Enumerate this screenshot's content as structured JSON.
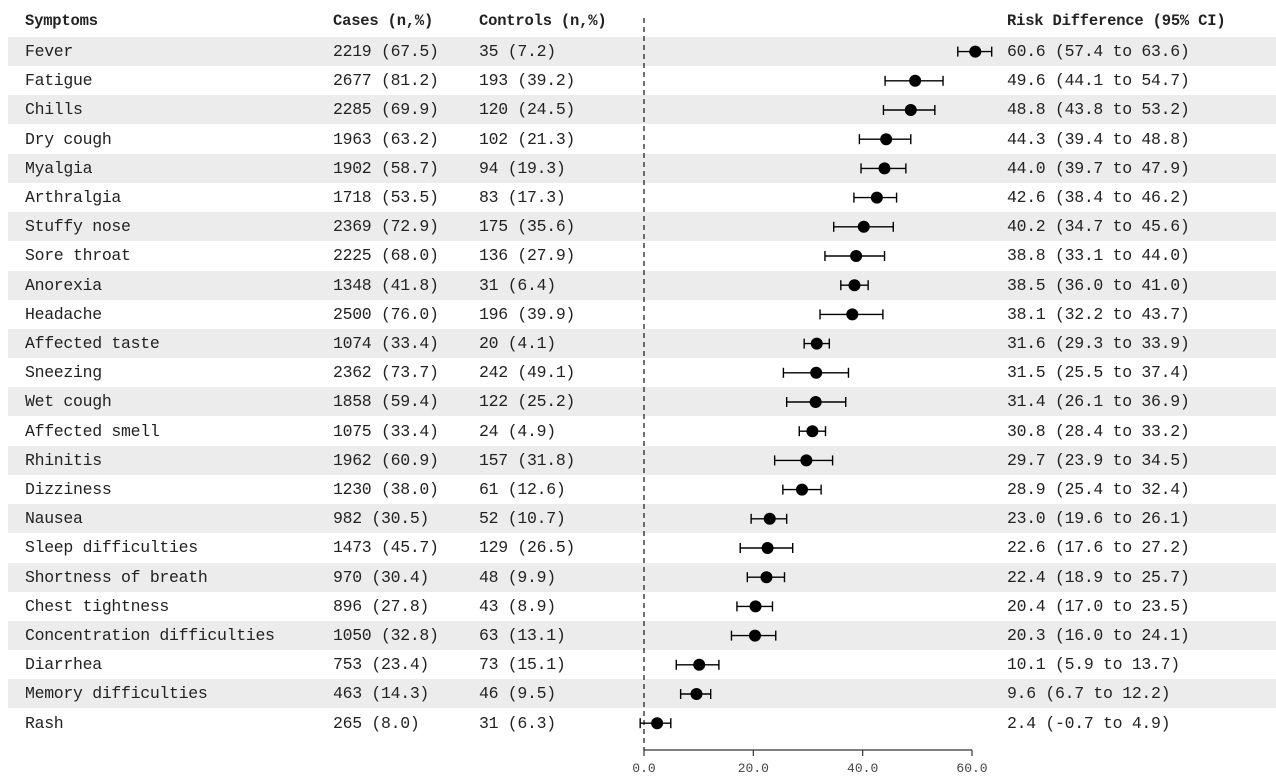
{
  "headers": {
    "symptoms": "Symptoms",
    "cases": "Cases (n,%)",
    "controls": "Controls (n,%)",
    "risk_difference": "Risk Difference (95% CI)"
  },
  "rows": [
    {
      "symptom": "Fever",
      "cases": "2219 (67.5)",
      "controls": "35 (7.2)",
      "rd_text": "60.6 (57.4 to 63.6)"
    },
    {
      "symptom": "Fatigue",
      "cases": "2677 (81.2)",
      "controls": "193 (39.2)",
      "rd_text": "49.6 (44.1 to 54.7)"
    },
    {
      "symptom": "Chills",
      "cases": "2285 (69.9)",
      "controls": "120 (24.5)",
      "rd_text": "48.8 (43.8 to 53.2)"
    },
    {
      "symptom": "Dry cough",
      "cases": "1963 (63.2)",
      "controls": "102 (21.3)",
      "rd_text": "44.3 (39.4 to 48.8)"
    },
    {
      "symptom": "Myalgia",
      "cases": "1902 (58.7)",
      "controls": "94 (19.3)",
      "rd_text": "44.0 (39.7 to 47.9)"
    },
    {
      "symptom": "Arthralgia",
      "cases": "1718 (53.5)",
      "controls": "83 (17.3)",
      "rd_text": "42.6 (38.4 to 46.2)"
    },
    {
      "symptom": "Stuffy nose",
      "cases": "2369 (72.9)",
      "controls": "175 (35.6)",
      "rd_text": "40.2 (34.7 to 45.6)"
    },
    {
      "symptom": "Sore throat",
      "cases": "2225 (68.0)",
      "controls": "136 (27.9)",
      "rd_text": "38.8 (33.1 to 44.0)"
    },
    {
      "symptom": "Anorexia",
      "cases": "1348 (41.8)",
      "controls": "31 (6.4)",
      "rd_text": "38.5 (36.0 to 41.0)"
    },
    {
      "symptom": "Headache",
      "cases": "2500 (76.0)",
      "controls": "196 (39.9)",
      "rd_text": "38.1 (32.2 to 43.7)"
    },
    {
      "symptom": "Affected taste",
      "cases": "1074 (33.4)",
      "controls": "20 (4.1)",
      "rd_text": "31.6 (29.3 to 33.9)"
    },
    {
      "symptom": "Sneezing",
      "cases": "2362 (73.7)",
      "controls": "242 (49.1)",
      "rd_text": "31.5 (25.5 to 37.4)"
    },
    {
      "symptom": "Wet cough",
      "cases": "1858 (59.4)",
      "controls": "122 (25.2)",
      "rd_text": "31.4 (26.1 to 36.9)"
    },
    {
      "symptom": "Affected smell",
      "cases": "1075 (33.4)",
      "controls": "24 (4.9)",
      "rd_text": "30.8 (28.4 to 33.2)"
    },
    {
      "symptom": "Rhinitis",
      "cases": "1962 (60.9)",
      "controls": "157 (31.8)",
      "rd_text": "29.7 (23.9 to 34.5)"
    },
    {
      "symptom": "Dizziness",
      "cases": "1230 (38.0)",
      "controls": "61 (12.6)",
      "rd_text": "28.9 (25.4 to 32.4)"
    },
    {
      "symptom": "Nausea",
      "cases": "982 (30.5)",
      "controls": "52 (10.7)",
      "rd_text": "23.0 (19.6 to 26.1)"
    },
    {
      "symptom": "Sleep difficulties",
      "cases": "1473 (45.7)",
      "controls": "129 (26.5)",
      "rd_text": "22.6 (17.6 to 27.2)"
    },
    {
      "symptom": "Shortness of breath",
      "cases": "970 (30.4)",
      "controls": "48 (9.9)",
      "rd_text": "22.4 (18.9 to 25.7)"
    },
    {
      "symptom": "Chest tightness",
      "cases": "896 (27.8)",
      "controls": "43 (8.9)",
      "rd_text": "20.4 (17.0 to 23.5)"
    },
    {
      "symptom": "Concentration difficulties",
      "cases": "1050 (32.8)",
      "controls": "63 (13.1)",
      "rd_text": "20.3 (16.0 to 24.1)"
    },
    {
      "symptom": "Diarrhea",
      "cases": "753 (23.4)",
      "controls": "73 (15.1)",
      "rd_text": "10.1 (5.9 to 13.7)"
    },
    {
      "symptom": "Memory difficulties",
      "cases": "463 (14.3)",
      "controls": "46 (9.5)",
      "rd_text": "9.6 (6.7 to 12.2)"
    },
    {
      "symptom": "Rash",
      "cases": "265 (8.0)",
      "controls": "31 (6.3)",
      "rd_text": "2.4 (-0.7 to 4.9)"
    }
  ],
  "chart_data": {
    "type": "forest",
    "xlabel": "",
    "xlim": [
      0,
      60
    ],
    "xticks": [
      0,
      20,
      40,
      60
    ],
    "xtick_labels": [
      "0.0",
      "20.0",
      "40.0",
      "60.0"
    ],
    "reference_line": 0,
    "categories": [
      "Fever",
      "Fatigue",
      "Chills",
      "Dry cough",
      "Myalgia",
      "Arthralgia",
      "Stuffy nose",
      "Sore throat",
      "Anorexia",
      "Headache",
      "Affected taste",
      "Sneezing",
      "Wet cough",
      "Affected smell",
      "Rhinitis",
      "Dizziness",
      "Nausea",
      "Sleep difficulties",
      "Shortness of breath",
      "Chest tightness",
      "Concentration difficulties",
      "Diarrhea",
      "Memory difficulties",
      "Rash"
    ],
    "estimates": [
      60.6,
      49.6,
      48.8,
      44.3,
      44.0,
      42.6,
      40.2,
      38.8,
      38.5,
      38.1,
      31.6,
      31.5,
      31.4,
      30.8,
      29.7,
      28.9,
      23.0,
      22.6,
      22.4,
      20.4,
      20.3,
      10.1,
      9.6,
      2.4
    ],
    "ci_low": [
      57.4,
      44.1,
      43.8,
      39.4,
      39.7,
      38.4,
      34.7,
      33.1,
      36.0,
      32.2,
      29.3,
      25.5,
      26.1,
      28.4,
      23.9,
      25.4,
      19.6,
      17.6,
      18.9,
      17.0,
      16.0,
      5.9,
      6.7,
      -0.7
    ],
    "ci_high": [
      63.6,
      54.7,
      53.2,
      48.8,
      47.9,
      46.2,
      45.6,
      44.0,
      41.0,
      43.7,
      33.9,
      37.4,
      36.9,
      33.2,
      34.5,
      32.4,
      26.1,
      27.2,
      25.7,
      23.5,
      24.1,
      13.7,
      12.2,
      4.9
    ],
    "colors": {
      "marker": "#000000",
      "row_shade": "#ececec",
      "axis": "#333333"
    }
  }
}
